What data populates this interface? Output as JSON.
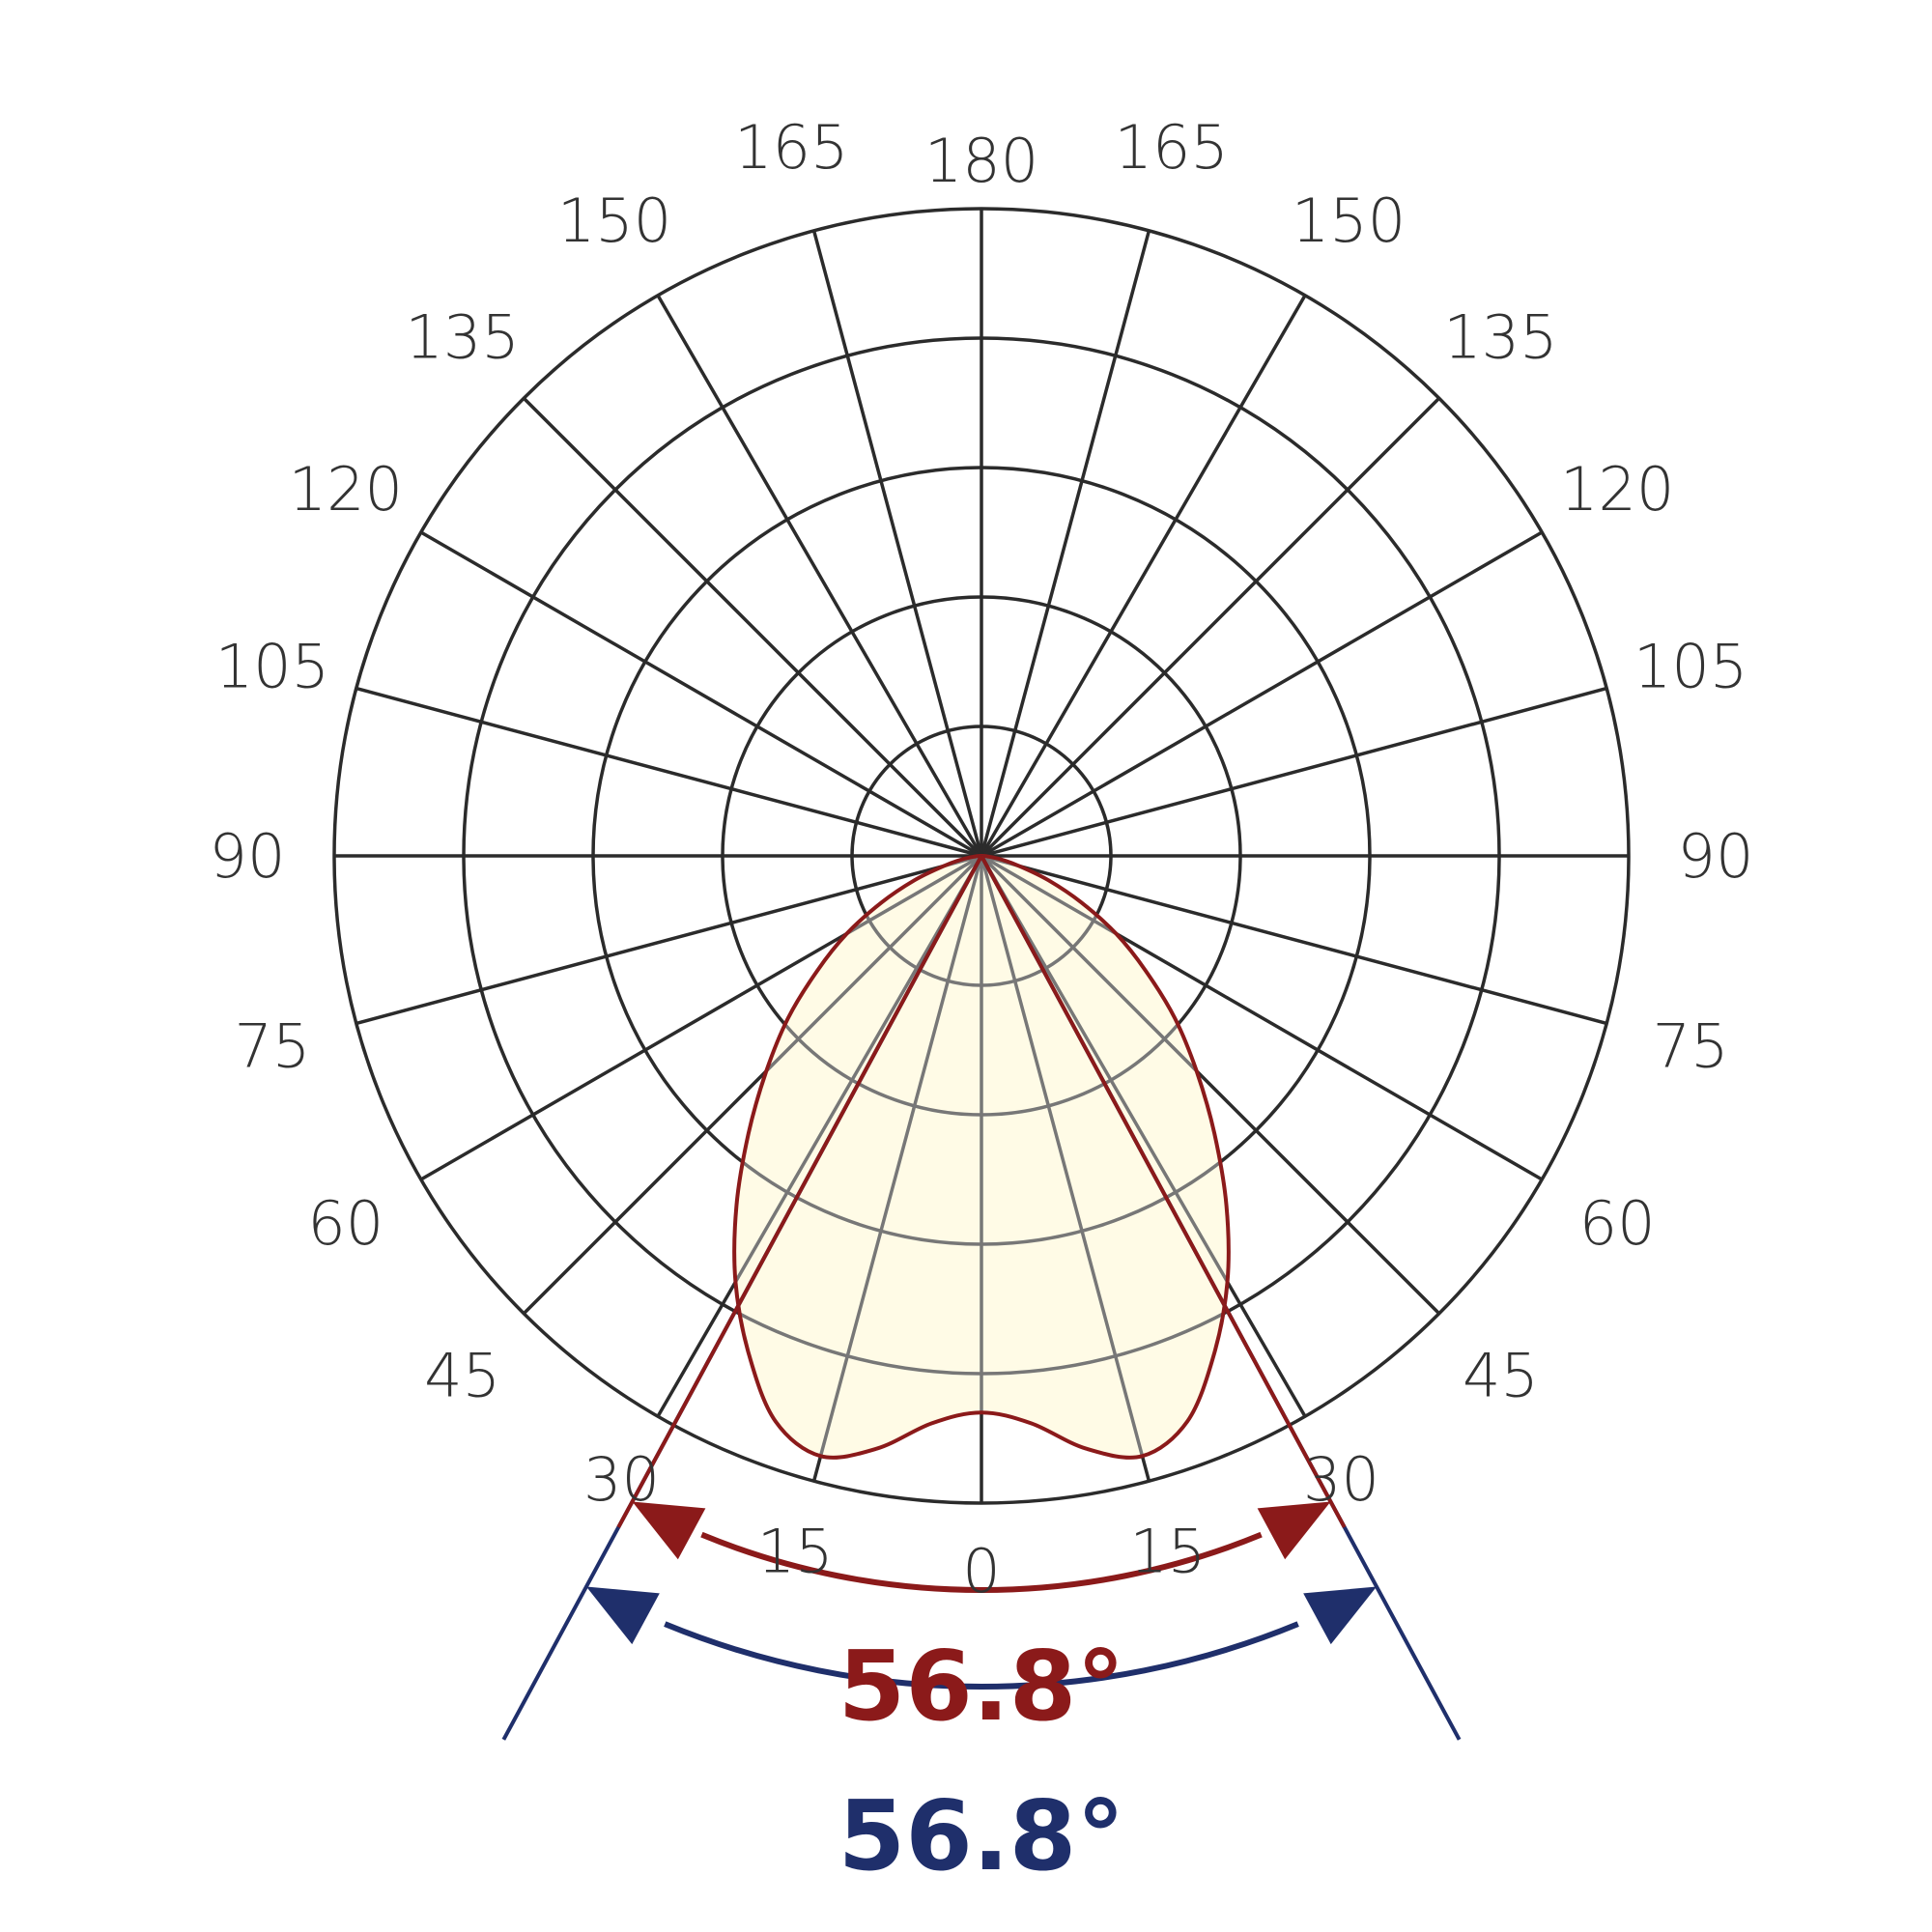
{
  "chart_data": {
    "type": "polar",
    "title": "",
    "angle_tick_labels": {
      "right": [
        "0",
        "15",
        "30",
        "45",
        "60",
        "75",
        "90",
        "105",
        "120",
        "135",
        "150",
        "165",
        "180"
      ],
      "left": [
        "0",
        "15",
        "30",
        "45",
        "60",
        "75",
        "90",
        "105",
        "120",
        "135",
        "150",
        "165",
        "180"
      ]
    },
    "radial_rings": 5,
    "grid": true,
    "series": [
      {
        "color": "#8b1a1a",
        "fill": "#fffbe6",
        "beam_angle_label": "56.8°",
        "beam_angle_deg": 56.8,
        "curve": {
          "angles": [
            0,
            5,
            10,
            15,
            20,
            25,
            30,
            35,
            40,
            45,
            50,
            55,
            60,
            65,
            70,
            75,
            80,
            85,
            90
          ],
          "values": [
            0.86,
            0.88,
            0.93,
            0.96,
            0.93,
            0.85,
            0.76,
            0.66,
            0.56,
            0.47,
            0.39,
            0.31,
            0.24,
            0.17,
            0.11,
            0.06,
            0.03,
            0.01,
            0
          ]
        }
      },
      {
        "color": "#1f2f6b",
        "beam_angle_label": "56.8°",
        "beam_angle_deg": 56.8
      }
    ]
  }
}
